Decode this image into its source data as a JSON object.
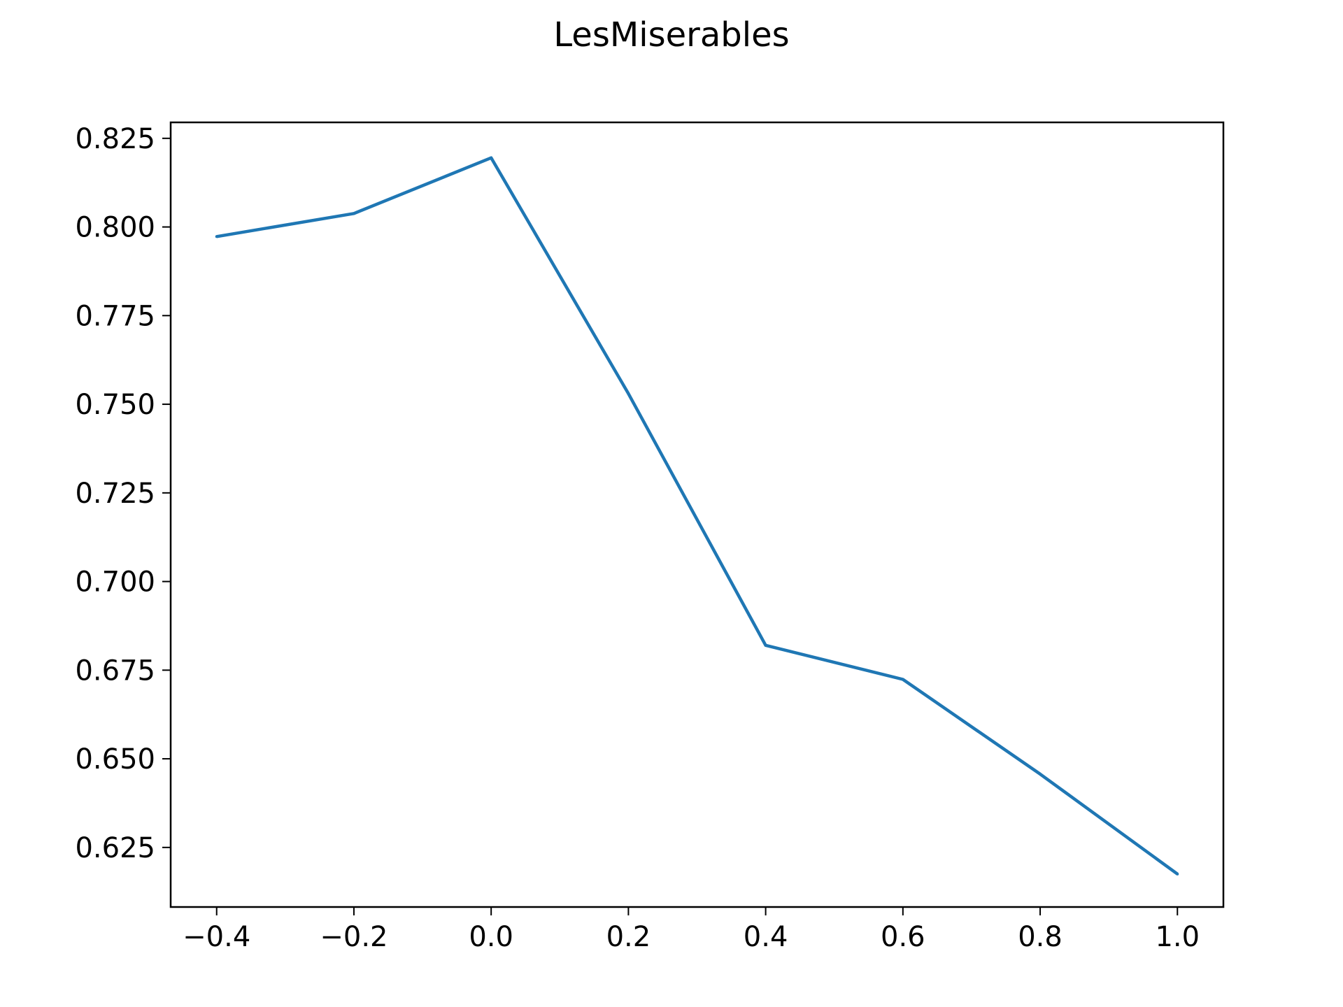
{
  "chart_data": {
    "type": "line",
    "title": "LesMiserables",
    "xlabel": "",
    "ylabel": "",
    "x": [
      -0.4,
      -0.2,
      0.0,
      0.2,
      0.4,
      0.6,
      0.8,
      1.0
    ],
    "series": [
      {
        "values": [
          0.7973,
          0.8038,
          0.8195,
          0.753,
          0.682,
          0.6724,
          0.6457,
          0.6175
        ],
        "color": "#1f77b4"
      }
    ],
    "xlim": [
      -0.467,
      1.067
    ],
    "ylim": [
      0.6082,
      0.8295
    ],
    "xticks": [
      -0.4,
      -0.2,
      0.0,
      0.2,
      0.4,
      0.6,
      0.8,
      1.0
    ],
    "xtick_labels": [
      "−0.4",
      "−0.2",
      "0.0",
      "0.2",
      "0.4",
      "0.6",
      "0.8",
      "1.0"
    ],
    "yticks": [
      0.625,
      0.65,
      0.675,
      0.7,
      0.725,
      0.75,
      0.775,
      0.8,
      0.825
    ],
    "ytick_labels": [
      "0.625",
      "0.650",
      "0.675",
      "0.700",
      "0.725",
      "0.750",
      "0.775",
      "0.800",
      "0.825"
    ],
    "grid": false,
    "legend": "none"
  }
}
